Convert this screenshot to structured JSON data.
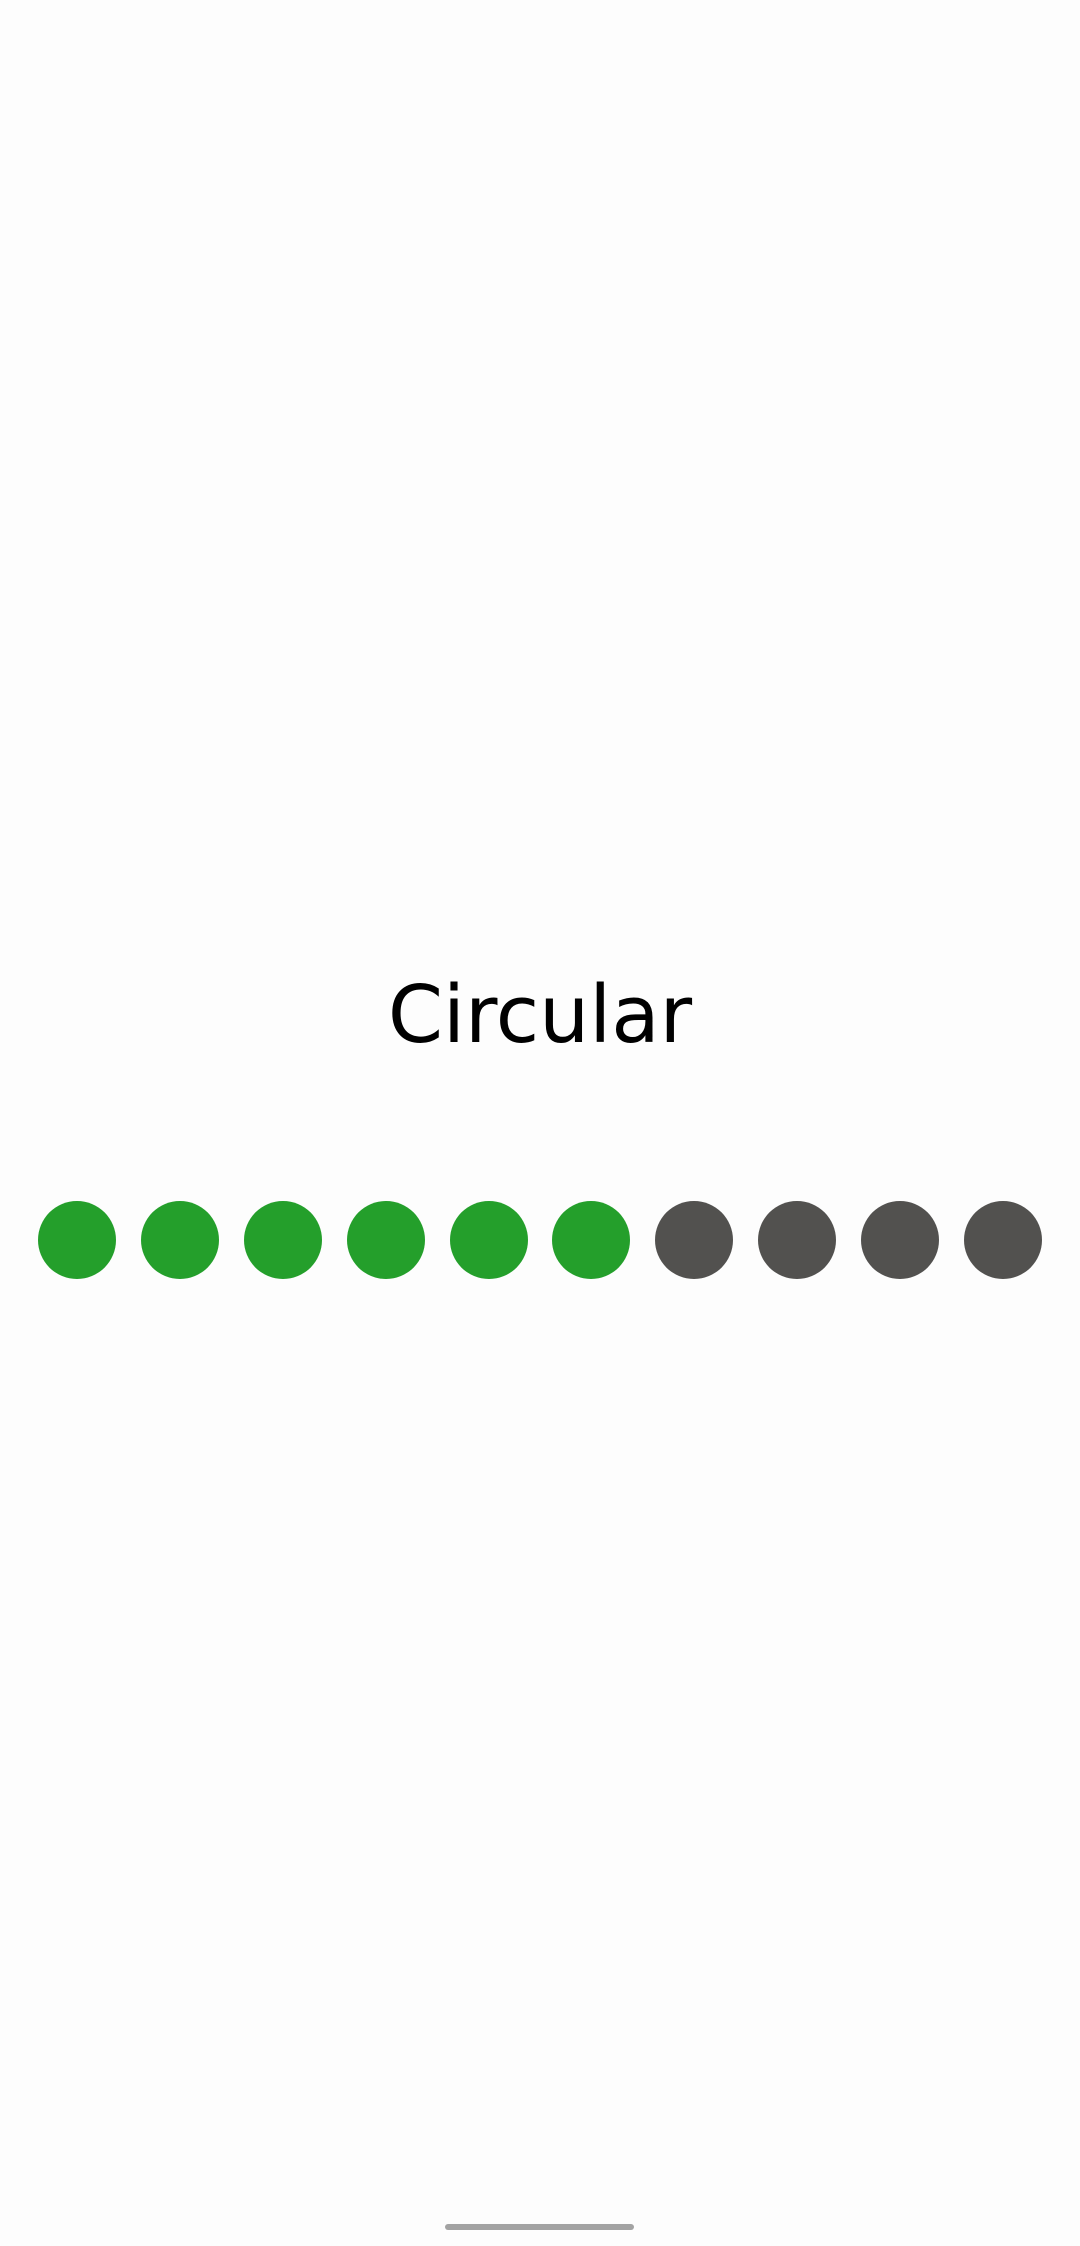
{
  "screen": {
    "title": "Circular"
  },
  "progress": {
    "total": 10,
    "completed": 6,
    "fraction": 0.6,
    "active_color": "#249f2b",
    "inactive_color": "#52514f",
    "dots": [
      {
        "state": "completed"
      },
      {
        "state": "completed"
      },
      {
        "state": "completed"
      },
      {
        "state": "completed"
      },
      {
        "state": "completed"
      },
      {
        "state": "completed"
      },
      {
        "state": "pending"
      },
      {
        "state": "pending"
      },
      {
        "state": "pending"
      },
      {
        "state": "pending"
      }
    ]
  },
  "system": {
    "gesture_handle_icon": "home-gesture-bar-icon"
  }
}
